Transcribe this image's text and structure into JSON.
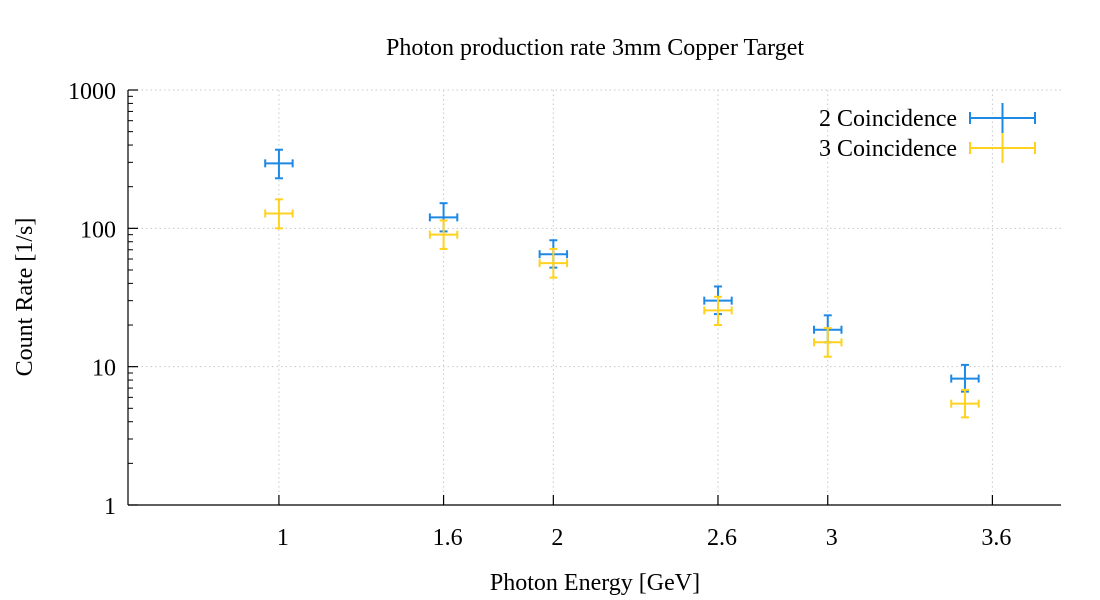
{
  "chart_data": {
    "type": "scatter",
    "title": "Photon production rate 3mm Copper Target",
    "xlabel": "Photon Energy [GeV]",
    "ylabel": "Count Rate [1/s]",
    "x_ticks": [
      {
        "value": 1,
        "label": "1"
      },
      {
        "value": 1.6,
        "label": "1.6"
      },
      {
        "value": 2,
        "label": "2"
      },
      {
        "value": 2.6,
        "label": "2.6"
      },
      {
        "value": 3,
        "label": "3"
      },
      {
        "value": 3.6,
        "label": "3.6"
      }
    ],
    "y_ticks": [
      {
        "value": 1,
        "label": "1"
      },
      {
        "value": 10,
        "label": "10"
      },
      {
        "value": 100,
        "label": "100"
      },
      {
        "value": 1000,
        "label": "1000"
      }
    ],
    "xlim": [
      0.45,
      3.85
    ],
    "ylim": [
      1,
      1000
    ],
    "y_scale": "log",
    "grid": true,
    "legend_position": "top-right",
    "series": [
      {
        "name": "2 Coincidence",
        "color": "#1e88e5",
        "points": [
          {
            "x": 1.0,
            "y": 295,
            "xerr": 0.05,
            "ylow": 230,
            "yhigh": 370
          },
          {
            "x": 1.6,
            "y": 120,
            "xerr": 0.05,
            "ylow": 95,
            "yhigh": 152
          },
          {
            "x": 2.0,
            "y": 65,
            "xerr": 0.05,
            "ylow": 52,
            "yhigh": 82
          },
          {
            "x": 2.6,
            "y": 30,
            "xerr": 0.05,
            "ylow": 24,
            "yhigh": 38
          },
          {
            "x": 3.0,
            "y": 18.5,
            "xerr": 0.05,
            "ylow": 15,
            "yhigh": 23.5
          },
          {
            "x": 3.5,
            "y": 8.2,
            "xerr": 0.05,
            "ylow": 6.6,
            "yhigh": 10.3
          }
        ]
      },
      {
        "name": "3 Coincidence",
        "color": "#ffd21f",
        "points": [
          {
            "x": 1.0,
            "y": 128,
            "xerr": 0.05,
            "ylow": 100,
            "yhigh": 162
          },
          {
            "x": 1.6,
            "y": 90,
            "xerr": 0.05,
            "ylow": 71,
            "yhigh": 114
          },
          {
            "x": 2.0,
            "y": 56,
            "xerr": 0.05,
            "ylow": 44,
            "yhigh": 71
          },
          {
            "x": 2.6,
            "y": 25.5,
            "xerr": 0.05,
            "ylow": 20,
            "yhigh": 32
          },
          {
            "x": 3.0,
            "y": 15,
            "xerr": 0.05,
            "ylow": 11.8,
            "yhigh": 19
          },
          {
            "x": 3.5,
            "y": 5.4,
            "xerr": 0.05,
            "ylow": 4.3,
            "yhigh": 6.8
          }
        ]
      }
    ]
  }
}
